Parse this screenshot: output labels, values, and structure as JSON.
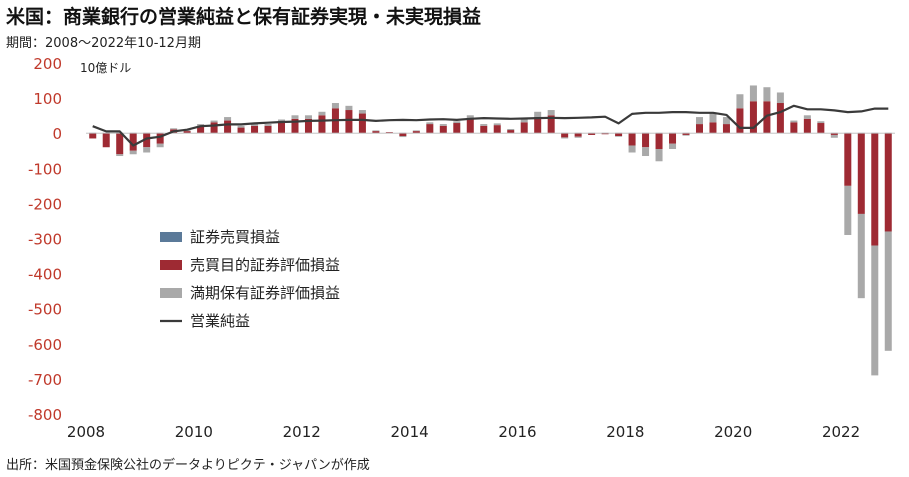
{
  "title": "米国：商業銀行の営業純益と保有証券実現・未実現損益",
  "subtitle": "期間：2008～2022年10-12月期",
  "source": "出所：米国預金保険公社のデータよりピクテ・ジャパンが作成",
  "chart_data": {
    "type": "bar",
    "unit_label": "10億ドル",
    "ylim": [
      -800,
      200
    ],
    "yticks": [
      200,
      100,
      0,
      -100,
      -200,
      -300,
      -400,
      -500,
      -600,
      -700,
      -800
    ],
    "xticks": [
      "2008",
      "2010",
      "2012",
      "2014",
      "2016",
      "2018",
      "2020",
      "2022"
    ],
    "quarters": [
      "2008Q1",
      "2008Q2",
      "2008Q3",
      "2008Q4",
      "2009Q1",
      "2009Q2",
      "2009Q3",
      "2009Q4",
      "2010Q1",
      "2010Q2",
      "2010Q3",
      "2010Q4",
      "2011Q1",
      "2011Q2",
      "2011Q3",
      "2011Q4",
      "2012Q1",
      "2012Q2",
      "2012Q3",
      "2012Q4",
      "2013Q1",
      "2013Q2",
      "2013Q3",
      "2013Q4",
      "2014Q1",
      "2014Q2",
      "2014Q3",
      "2014Q4",
      "2015Q1",
      "2015Q2",
      "2015Q3",
      "2015Q4",
      "2016Q1",
      "2016Q2",
      "2016Q3",
      "2016Q4",
      "2017Q1",
      "2017Q2",
      "2017Q3",
      "2017Q4",
      "2018Q1",
      "2018Q2",
      "2018Q3",
      "2018Q4",
      "2019Q1",
      "2019Q2",
      "2019Q3",
      "2019Q4",
      "2020Q1",
      "2020Q2",
      "2020Q3",
      "2020Q4",
      "2021Q1",
      "2021Q2",
      "2021Q3",
      "2021Q4",
      "2022Q1",
      "2022Q2",
      "2022Q3",
      "2022Q4"
    ],
    "series": [
      {
        "name": "証券売買損益",
        "color": "#5b7a99",
        "values": [
          1,
          1,
          1,
          1,
          1,
          1,
          1,
          1,
          1,
          1,
          1,
          1,
          1,
          1,
          1,
          1,
          1,
          1,
          1,
          1,
          1,
          1,
          1,
          1,
          1,
          1,
          1,
          1,
          1,
          1,
          1,
          1,
          1,
          1,
          1,
          1,
          1,
          1,
          1,
          1,
          1,
          1,
          1,
          1,
          1,
          1,
          1,
          1,
          1,
          1,
          1,
          1,
          1,
          1,
          1,
          1,
          1,
          1,
          1,
          1
        ]
      },
      {
        "name": "売買目的証券評価損益",
        "color": "#9e2a33",
        "values": [
          -15,
          -40,
          -60,
          -50,
          -40,
          -30,
          10,
          5,
          20,
          30,
          35,
          15,
          20,
          20,
          30,
          40,
          40,
          50,
          70,
          65,
          55,
          5,
          2,
          -8,
          5,
          25,
          20,
          28,
          40,
          20,
          22,
          8,
          30,
          45,
          50,
          -12,
          -10,
          -5,
          -3,
          -8,
          -35,
          -40,
          -45,
          -30,
          -5,
          25,
          30,
          25,
          70,
          90,
          90,
          85,
          30,
          40,
          28,
          -5,
          -150,
          -230,
          -320,
          -280
        ],
        "pos_values": [
          0,
          0,
          0,
          0,
          0,
          0,
          10,
          5,
          20,
          30,
          35,
          15,
          20,
          20,
          30,
          40,
          40,
          50,
          70,
          65,
          55,
          5,
          2,
          0,
          5,
          25,
          20,
          28,
          40,
          20,
          22,
          8,
          30,
          45,
          50,
          0,
          0,
          0,
          0,
          0,
          0,
          0,
          0,
          0,
          0,
          25,
          30,
          25,
          70,
          90,
          90,
          85,
          30,
          40,
          28,
          0,
          0,
          0,
          0,
          0
        ]
      },
      {
        "name": "満期保有証券評価損益",
        "color": "#a9a9a9",
        "values": [
          0,
          0,
          -5,
          -10,
          -15,
          -10,
          3,
          2,
          5,
          5,
          10,
          5,
          5,
          5,
          8,
          10,
          10,
          10,
          15,
          12,
          10,
          2,
          0,
          -3,
          2,
          5,
          5,
          5,
          10,
          5,
          5,
          3,
          10,
          15,
          15,
          -3,
          -3,
          0,
          0,
          -2,
          -20,
          -25,
          -35,
          -15,
          -2,
          20,
          25,
          20,
          40,
          45,
          40,
          30,
          5,
          10,
          5,
          -8,
          -140,
          -240,
          -370,
          -340
        ]
      },
      {
        "name": "営業純益",
        "color": "#3a3a3a",
        "values": [
          20,
          5,
          5,
          -35,
          -15,
          -10,
          5,
          10,
          20,
          22,
          25,
          25,
          28,
          30,
          32,
          33,
          35,
          36,
          37,
          38,
          38,
          35,
          37,
          38,
          37,
          39,
          40,
          38,
          41,
          43,
          42,
          41,
          42,
          43,
          44,
          43,
          44,
          45,
          47,
          28,
          55,
          58,
          58,
          60,
          60,
          58,
          58,
          52,
          15,
          15,
          50,
          60,
          78,
          68,
          68,
          65,
          60,
          62,
          70,
          70
        ]
      }
    ]
  },
  "legend_items": [
    "証券売買損益",
    "売買目的証券評価損益",
    "満期保有証券評価損益",
    "営業純益"
  ]
}
